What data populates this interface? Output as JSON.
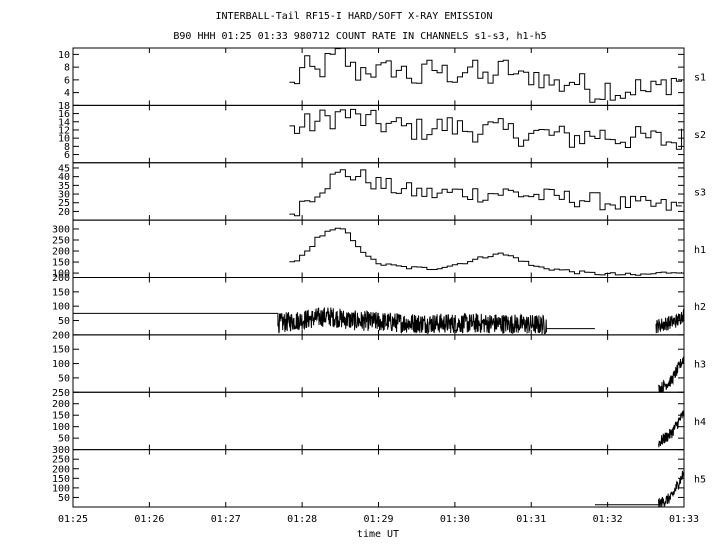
{
  "chart_data": {
    "type": "line",
    "title": "INTERBALL-Tail RF15-I HARD/SOFT X-RAY EMISSION",
    "subtitle": "B90 HHH 01:25 01:33 980712  COUNT RATE IN CHANNELS s1-s3, h1-h5",
    "xlabel": "time UT",
    "x_range": [
      "01:25",
      "01:33"
    ],
    "x_ticks": [
      "01:25",
      "01:26",
      "01:27",
      "01:28",
      "01:29",
      "01:30",
      "01:31",
      "01:32",
      "01:33"
    ],
    "grid": false,
    "panels": [
      {
        "name": "s1",
        "ylim": [
          2,
          11
        ],
        "y_ticks": [
          {
            "v": 4,
            "label": "4"
          },
          {
            "v": 6,
            "label": "6"
          },
          {
            "v": 8,
            "label": "8"
          },
          {
            "v": 10,
            "label": "10"
          }
        ],
        "series": [
          {
            "render": "step",
            "points": [
              [
                "01:27:50",
                5
              ],
              [
                "01:28:00",
                8
              ],
              [
                "01:28:10",
                7
              ],
              [
                "01:28:20",
                9
              ],
              [
                "01:28:30",
                10
              ],
              [
                "01:28:40",
                7
              ],
              [
                "01:28:50",
                8
              ],
              [
                "01:29:00",
                7
              ],
              [
                "01:29:10",
                8
              ],
              [
                "01:29:20",
                7
              ],
              [
                "01:29:30",
                6
              ],
              [
                "01:29:40",
                8
              ],
              [
                "01:29:50",
                7
              ],
              [
                "01:30:00",
                7
              ],
              [
                "01:30:10",
                8
              ],
              [
                "01:30:20",
                6
              ],
              [
                "01:30:30",
                7
              ],
              [
                "01:30:40",
                8
              ],
              [
                "01:30:50",
                6
              ],
              [
                "01:31:00",
                7
              ],
              [
                "01:31:10",
                6
              ],
              [
                "01:31:20",
                5
              ],
              [
                "01:31:30",
                6
              ],
              [
                "01:31:40",
                5
              ],
              [
                "01:31:50",
                4
              ],
              [
                "01:32:00",
                5
              ],
              [
                "01:32:10",
                4
              ],
              [
                "01:32:20",
                5
              ],
              [
                "01:32:30",
                4
              ],
              [
                "01:32:40",
                5
              ],
              [
                "01:32:50",
                6
              ],
              [
                "01:32:58",
                6
              ]
            ],
            "noise": {
              "amp": 2.0,
              "step_s": 4,
              "from": "01:27:50",
              "to": "01:33:00"
            }
          }
        ]
      },
      {
        "name": "s2",
        "ylim": [
          4,
          18
        ],
        "y_ticks": [
          {
            "v": 6,
            "label": "6"
          },
          {
            "v": 8,
            "label": "8"
          },
          {
            "v": 10,
            "label": "10"
          },
          {
            "v": 12,
            "label": "12"
          },
          {
            "v": 14,
            "label": "14"
          },
          {
            "v": 16,
            "label": "16"
          },
          {
            "v": 18,
            "label": "18"
          }
        ],
        "series": [
          {
            "render": "step",
            "points": [
              [
                "01:27:50",
                12
              ],
              [
                "01:28:10",
                14
              ],
              [
                "01:28:30",
                16
              ],
              [
                "01:28:50",
                14
              ],
              [
                "01:29:10",
                13
              ],
              [
                "01:29:30",
                12
              ],
              [
                "01:29:50",
                13
              ],
              [
                "01:30:10",
                12
              ],
              [
                "01:30:30",
                12
              ],
              [
                "01:30:50",
                11
              ],
              [
                "01:31:10",
                11
              ],
              [
                "01:31:30",
                10
              ],
              [
                "01:31:50",
                11
              ],
              [
                "01:32:10",
                10
              ],
              [
                "01:32:30",
                10
              ],
              [
                "01:32:50",
                9
              ],
              [
                "01:32:58",
                10
              ]
            ],
            "noise": {
              "amp": 3.0,
              "step_s": 4,
              "from": "01:27:50",
              "to": "01:33:00"
            }
          }
        ]
      },
      {
        "name": "s3",
        "ylim": [
          15,
          48
        ],
        "y_ticks": [
          {
            "v": 20,
            "label": "20"
          },
          {
            "v": 25,
            "label": "25"
          },
          {
            "v": 30,
            "label": "30"
          },
          {
            "v": 35,
            "label": "35"
          },
          {
            "v": 40,
            "label": "40"
          },
          {
            "v": 45,
            "label": "45"
          }
        ],
        "series": [
          {
            "render": "step",
            "points": [
              [
                "01:27:50",
                20
              ],
              [
                "01:28:00",
                26
              ],
              [
                "01:28:10",
                32
              ],
              [
                "01:28:20",
                38
              ],
              [
                "01:28:30",
                42
              ],
              [
                "01:28:45",
                40
              ],
              [
                "01:29:00",
                35
              ],
              [
                "01:29:20",
                32
              ],
              [
                "01:29:40",
                30
              ],
              [
                "01:30:00",
                31
              ],
              [
                "01:30:20",
                30
              ],
              [
                "01:30:40",
                31
              ],
              [
                "01:31:00",
                29
              ],
              [
                "01:31:20",
                28
              ],
              [
                "01:31:40",
                27
              ],
              [
                "01:32:00",
                25
              ],
              [
                "01:32:20",
                24
              ],
              [
                "01:32:40",
                23
              ],
              [
                "01:32:58",
                22
              ]
            ],
            "noise": {
              "amp": 5.0,
              "step_s": 4,
              "from": "01:27:50",
              "to": "01:33:00"
            }
          }
        ]
      },
      {
        "name": "h1",
        "ylim": [
          80,
          340
        ],
        "y_ticks": [
          {
            "v": 100,
            "label": "100"
          },
          {
            "v": 150,
            "label": "150"
          },
          {
            "v": 200,
            "label": "200"
          },
          {
            "v": 250,
            "label": "250"
          },
          {
            "v": 300,
            "label": "300"
          }
        ],
        "series": [
          {
            "render": "step",
            "points": [
              [
                "01:27:50",
                150
              ],
              [
                "01:28:00",
                180
              ],
              [
                "01:28:10",
                260
              ],
              [
                "01:28:20",
                290
              ],
              [
                "01:28:30",
                300
              ],
              [
                "01:28:40",
                240
              ],
              [
                "01:28:50",
                170
              ],
              [
                "01:29:00",
                140
              ],
              [
                "01:29:20",
                125
              ],
              [
                "01:29:40",
                120
              ],
              [
                "01:30:00",
                140
              ],
              [
                "01:30:20",
                170
              ],
              [
                "01:30:30",
                190
              ],
              [
                "01:30:40",
                180
              ],
              [
                "01:30:50",
                160
              ],
              [
                "01:31:00",
                130
              ],
              [
                "01:31:20",
                115
              ],
              [
                "01:31:40",
                100
              ],
              [
                "01:32:00",
                95
              ],
              [
                "01:32:20",
                90
              ],
              [
                "01:32:40",
                100
              ],
              [
                "01:32:58",
                110
              ]
            ],
            "noise": {
              "amp": 8.0,
              "step_s": 4,
              "from": "01:27:50",
              "to": "01:33:00"
            }
          }
        ]
      },
      {
        "name": "h2",
        "ylim": [
          0,
          200
        ],
        "y_ticks": [
          {
            "v": 50,
            "label": "50"
          },
          {
            "v": 100,
            "label": "100"
          },
          {
            "v": 150,
            "label": "150"
          },
          {
            "v": 200,
            "label": "200"
          }
        ],
        "series": [
          {
            "render": "line",
            "points": [
              [
                "01:25:00",
                75
              ],
              [
                "01:27:41",
                75
              ],
              [
                "01:27:41",
                30
              ]
            ]
          },
          {
            "render": "line",
            "points": [
              [
                "01:27:41",
                40
              ],
              [
                "01:28:20",
                65
              ],
              [
                "01:28:40",
                50
              ],
              [
                "01:29:30",
                40
              ],
              [
                "01:30:30",
                40
              ],
              [
                "01:31:10",
                35
              ]
            ],
            "noise": {
              "amp": 35,
              "step_s": 0.25,
              "from": "01:27:41",
              "to": "01:31:12"
            }
          },
          {
            "render": "line",
            "points": [
              [
                "01:31:12",
                22
              ],
              [
                "01:31:50",
                22
              ]
            ]
          },
          {
            "render": "line",
            "points": [
              [
                "01:32:38",
                30
              ],
              [
                "01:32:55",
                50
              ],
              [
                "01:33:00",
                75
              ]
            ],
            "noise": {
              "amp": 25,
              "step_s": 0.25,
              "from": "01:32:38",
              "to": "01:33:00"
            }
          }
        ]
      },
      {
        "name": "h3",
        "ylim": [
          0,
          200
        ],
        "y_ticks": [
          {
            "v": 50,
            "label": "50"
          },
          {
            "v": 100,
            "label": "100"
          },
          {
            "v": 150,
            "label": "150"
          },
          {
            "v": 200,
            "label": "200"
          }
        ],
        "series": [
          {
            "render": "line",
            "points": [
              [
                "01:32:40",
                10
              ],
              [
                "01:32:50",
                40
              ],
              [
                "01:33:00",
                120
              ]
            ],
            "noise": {
              "amp": 20,
              "step_s": 0.25,
              "from": "01:32:40",
              "to": "01:33:00"
            }
          }
        ]
      },
      {
        "name": "h4",
        "ylim": [
          0,
          250
        ],
        "y_ticks": [
          {
            "v": 50,
            "label": "50"
          },
          {
            "v": 100,
            "label": "100"
          },
          {
            "v": 150,
            "label": "150"
          },
          {
            "v": 200,
            "label": "200"
          },
          {
            "v": 250,
            "label": "250"
          }
        ],
        "series": [
          {
            "render": "line",
            "points": [
              [
                "01:32:40",
                30
              ],
              [
                "01:32:50",
                70
              ],
              [
                "01:33:00",
                160
              ]
            ],
            "noise": {
              "amp": 25,
              "step_s": 0.25,
              "from": "01:32:40",
              "to": "01:33:00"
            }
          }
        ]
      },
      {
        "name": "h5",
        "ylim": [
          0,
          300
        ],
        "y_ticks": [
          {
            "v": 50,
            "label": "50"
          },
          {
            "v": 100,
            "label": "100"
          },
          {
            "v": 150,
            "label": "150"
          },
          {
            "v": 200,
            "label": "200"
          },
          {
            "v": 250,
            "label": "250"
          },
          {
            "v": 300,
            "label": "300"
          }
        ],
        "series": [
          {
            "render": "line",
            "points": [
              [
                "01:31:50",
                12
              ],
              [
                "01:32:40",
                12
              ]
            ]
          },
          {
            "render": "line",
            "points": [
              [
                "01:32:40",
                15
              ],
              [
                "01:32:50",
                50
              ],
              [
                "01:33:00",
                180
              ]
            ],
            "noise": {
              "amp": 30,
              "step_s": 0.25,
              "from": "01:32:40",
              "to": "01:33:00"
            }
          }
        ]
      }
    ]
  }
}
